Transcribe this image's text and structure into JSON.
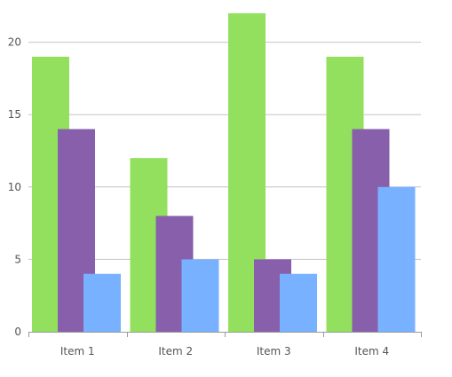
{
  "chart_data": {
    "type": "bar",
    "categories": [
      "Item 1",
      "Item 2",
      "Item 3",
      "Item 4"
    ],
    "series": [
      {
        "values": [
          19,
          12,
          22,
          19
        ],
        "color": "#92e05e"
      },
      {
        "values": [
          14,
          8,
          5,
          14
        ],
        "color": "#875fab"
      },
      {
        "values": [
          4,
          5,
          4,
          10
        ],
        "color": "#78b1ff"
      }
    ],
    "y_ticks": [
      0,
      5,
      10,
      15,
      20
    ],
    "ylim": [
      0,
      22
    ],
    "grid": true,
    "gridline_color": "#c4c4c4",
    "axis_color": "#9a9a9a"
  }
}
